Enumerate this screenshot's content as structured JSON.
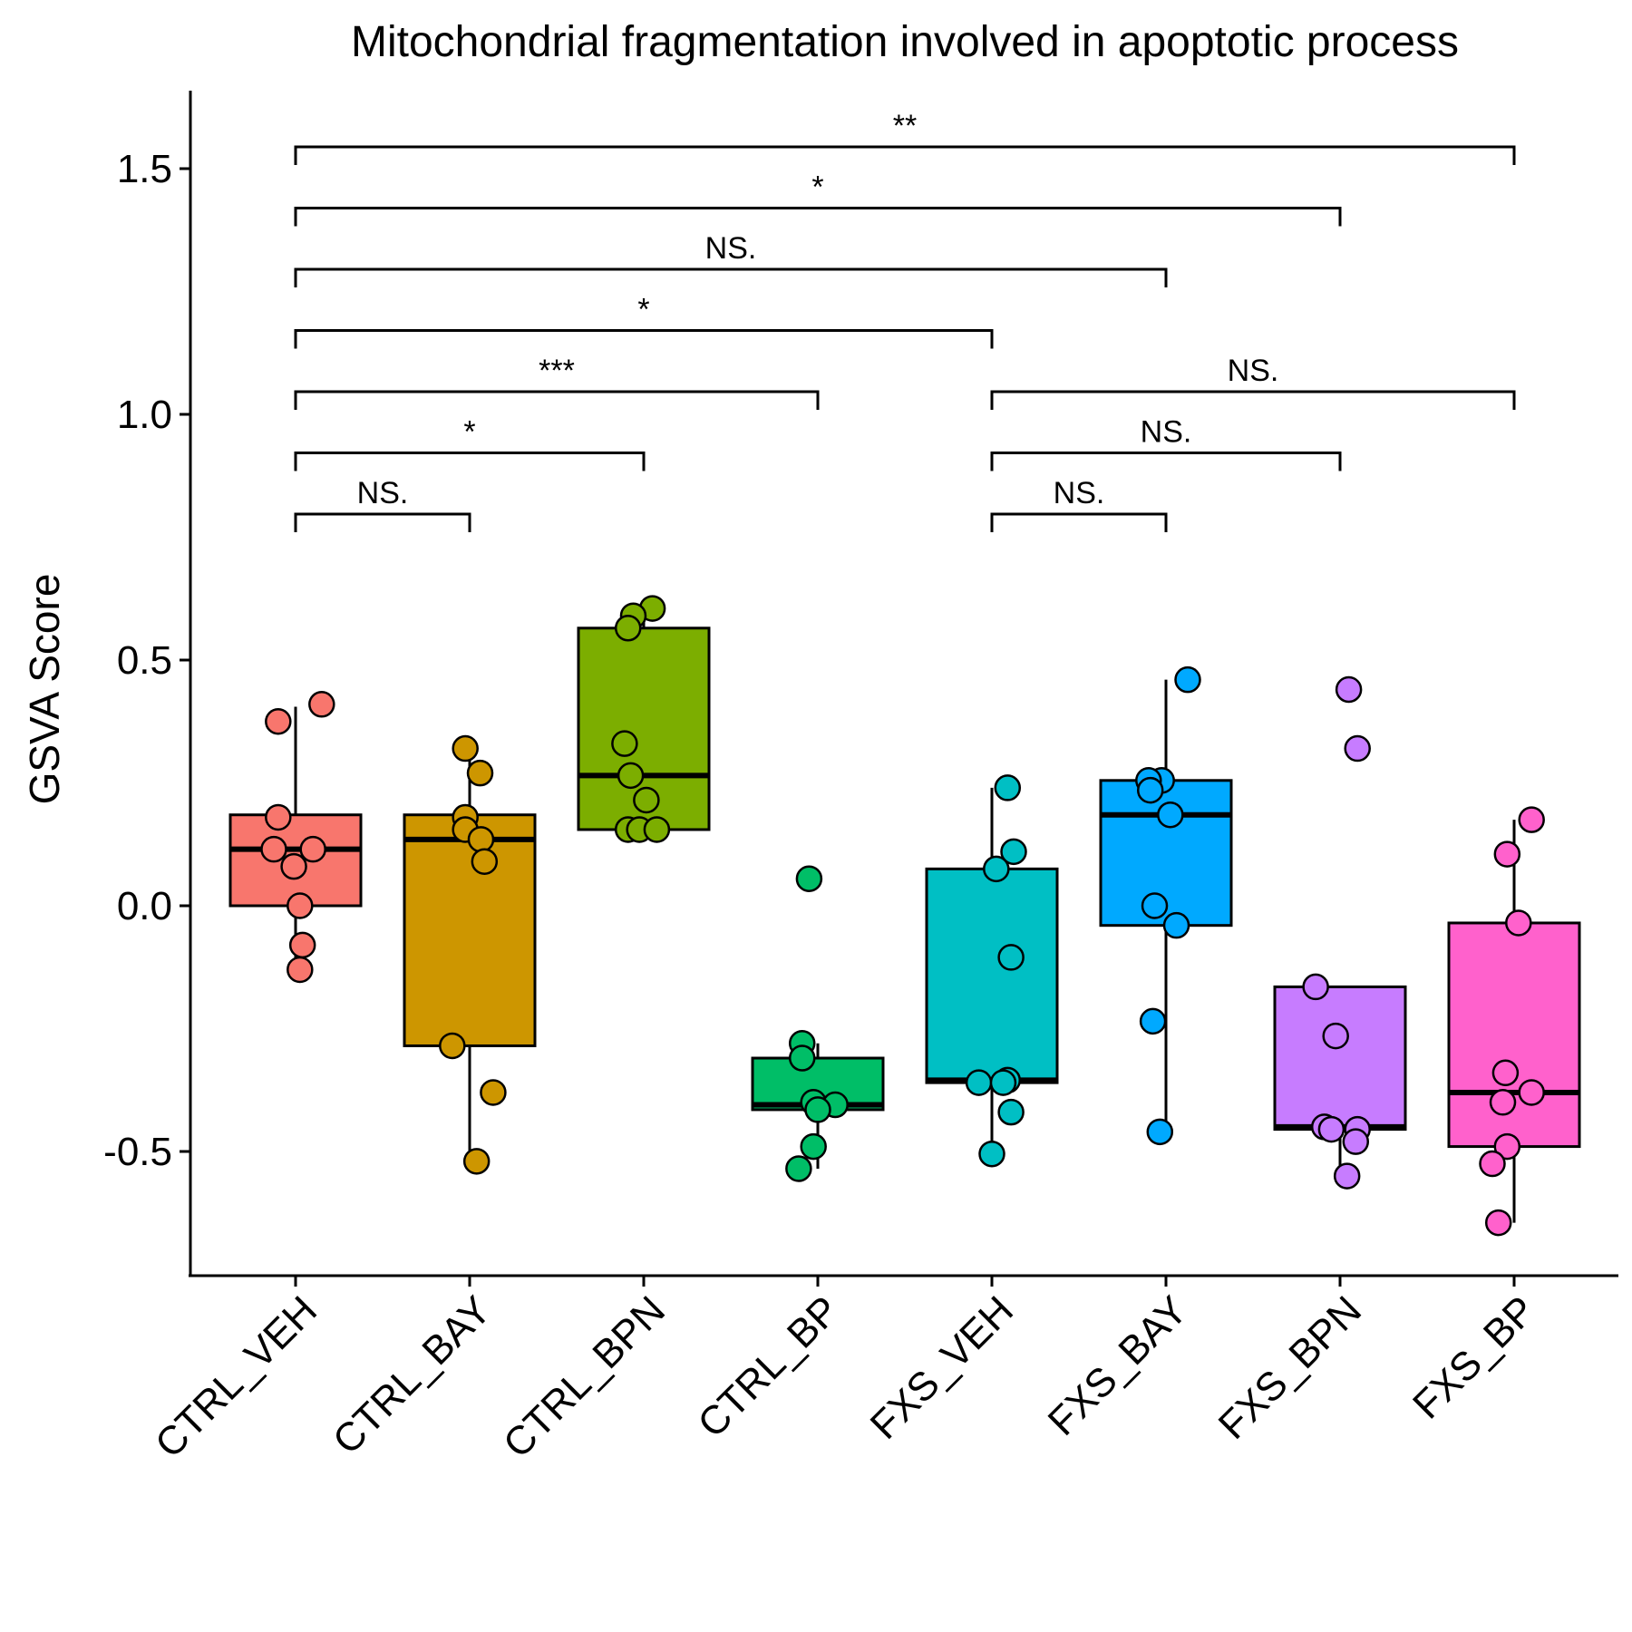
{
  "chart_data": {
    "type": "boxplot",
    "title": "Mitochondrial fragmentation involved in apoptotic process",
    "xlabel": "",
    "ylabel": "GSVA Score",
    "ylim": [
      -0.73,
      1.65
    ],
    "y_ticks": [
      -0.5,
      0.0,
      0.5,
      1.0,
      1.5
    ],
    "y_tick_labels": [
      "-0.5",
      "0.0",
      "0.5",
      "1.0",
      "1.5"
    ],
    "grid": false,
    "legend": "none",
    "categories": [
      "CTRL_VEH",
      "CTRL_BAY",
      "CTRL_BPN",
      "CTRL_BP",
      "FXS_VEH",
      "FXS_BAY",
      "FXS_BPN",
      "FXS_BP"
    ],
    "groups": [
      {
        "name": "CTRL_VEH",
        "color": "#F8766D",
        "q1": 0.0,
        "median": 0.115,
        "q3": 0.185,
        "whisker_low": -0.13,
        "whisker_high": 0.405,
        "points": [
          0.41,
          0.375,
          0.18,
          0.115,
          0.115,
          0.08,
          0.0,
          -0.08,
          -0.13
        ]
      },
      {
        "name": "CTRL_BAY",
        "color": "#CD9600",
        "q1": -0.285,
        "median": 0.135,
        "q3": 0.185,
        "whisker_low": -0.52,
        "whisker_high": 0.315,
        "points": [
          0.32,
          0.27,
          0.18,
          0.155,
          0.135,
          0.09,
          -0.285,
          -0.38,
          -0.52
        ]
      },
      {
        "name": "CTRL_BPN",
        "color": "#7CAE00",
        "q1": 0.155,
        "median": 0.265,
        "q3": 0.565,
        "whisker_low": 0.155,
        "whisker_high": 0.605,
        "points": [
          0.605,
          0.59,
          0.565,
          0.33,
          0.265,
          0.215,
          0.155,
          0.155,
          0.155
        ]
      },
      {
        "name": "CTRL_BP",
        "color": "#00BE67",
        "q1": -0.415,
        "median": -0.405,
        "q3": -0.31,
        "whisker_low": -0.535,
        "whisker_high": -0.28,
        "points": [
          0.055,
          -0.28,
          -0.31,
          -0.4,
          -0.405,
          -0.415,
          -0.49,
          -0.535
        ]
      },
      {
        "name": "FXS_VEH",
        "color": "#00BFC4",
        "q1": -0.36,
        "median": -0.355,
        "q3": 0.075,
        "whisker_low": -0.505,
        "whisker_high": 0.24,
        "points": [
          0.24,
          0.11,
          0.075,
          -0.105,
          -0.355,
          -0.36,
          -0.36,
          -0.42,
          -0.505
        ]
      },
      {
        "name": "FXS_BAY",
        "color": "#00A9FF",
        "q1": -0.04,
        "median": 0.185,
        "q3": 0.255,
        "whisker_low": -0.46,
        "whisker_high": 0.46,
        "points": [
          0.46,
          0.255,
          0.255,
          0.235,
          0.185,
          0.0,
          -0.04,
          -0.235,
          -0.46
        ]
      },
      {
        "name": "FXS_BPN",
        "color": "#C77CFF",
        "q1": -0.455,
        "median": -0.45,
        "q3": -0.165,
        "whisker_low": -0.55,
        "whisker_high": -0.165,
        "points": [
          0.44,
          0.32,
          -0.165,
          -0.265,
          -0.45,
          -0.455,
          -0.455,
          -0.48,
          -0.55
        ]
      },
      {
        "name": "FXS_BP",
        "color": "#FF61CC",
        "q1": -0.49,
        "median": -0.38,
        "q3": -0.035,
        "whisker_low": -0.645,
        "whisker_high": 0.175,
        "points": [
          0.175,
          0.105,
          -0.035,
          -0.34,
          -0.38,
          -0.4,
          -0.49,
          -0.525,
          -0.645
        ]
      }
    ],
    "point_offsets": [
      [
        0.3,
        -0.2,
        -0.2,
        -0.25,
        0.2,
        -0.02,
        0.05,
        0.08,
        0.05
      ],
      [
        -0.05,
        0.12,
        -0.05,
        -0.05,
        0.13,
        0.17,
        -0.2,
        0.27,
        0.08
      ],
      [
        0.1,
        -0.12,
        -0.18,
        -0.22,
        -0.15,
        0.03,
        -0.18,
        -0.05,
        0.15
      ],
      [
        -0.1,
        -0.18,
        -0.18,
        -0.05,
        0.2,
        0.0,
        -0.05,
        -0.22
      ],
      [
        0.18,
        0.25,
        0.05,
        0.22,
        0.18,
        -0.15,
        0.13,
        0.22,
        0.0
      ],
      [
        0.25,
        -0.05,
        -0.2,
        -0.18,
        0.05,
        -0.13,
        0.12,
        -0.15,
        -0.07
      ],
      [
        0.1,
        0.2,
        -0.28,
        -0.05,
        -0.18,
        -0.1,
        0.2,
        0.18,
        0.08
      ],
      [
        0.2,
        -0.08,
        0.05,
        -0.1,
        0.2,
        -0.13,
        -0.08,
        -0.25,
        -0.18
      ]
    ],
    "annotations": [
      {
        "from": 0,
        "to": 1,
        "label": "NS.",
        "level": 0
      },
      {
        "from": 0,
        "to": 2,
        "label": "*",
        "level": 1
      },
      {
        "from": 0,
        "to": 3,
        "label": "***",
        "level": 2
      },
      {
        "from": 0,
        "to": 4,
        "label": "*",
        "level": 3
      },
      {
        "from": 0,
        "to": 5,
        "label": "NS.",
        "level": 4
      },
      {
        "from": 0,
        "to": 6,
        "label": "*",
        "level": 5
      },
      {
        "from": 0,
        "to": 7,
        "label": "**",
        "level": 6
      },
      {
        "from": 4,
        "to": 5,
        "label": "NS.",
        "level": 0
      },
      {
        "from": 4,
        "to": 6,
        "label": "NS.",
        "level": 1
      },
      {
        "from": 4,
        "to": 7,
        "label": "NS.",
        "level": 2
      }
    ]
  }
}
